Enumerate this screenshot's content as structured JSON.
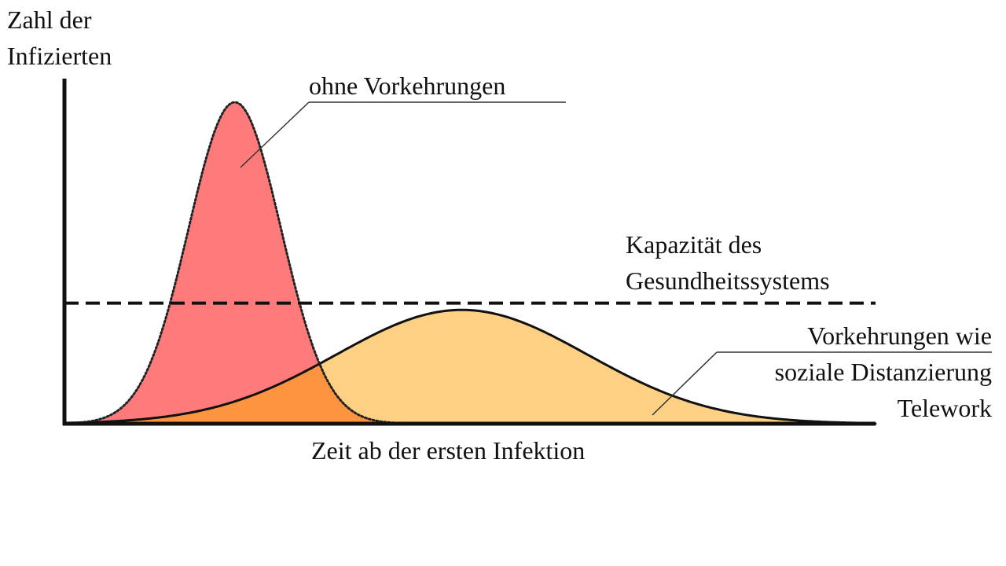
{
  "ylabel_lines": [
    "Zahl der",
    "Infizierten"
  ],
  "xlabel": "Zeit ab der ersten Infektion",
  "annotations": {
    "peak_lines": [
      "ohne Vorkehrungen"
    ],
    "capacity_lines": [
      "Kapazität des",
      "Gesundheitssystems"
    ],
    "flat_lines": [
      "Vorkehrungen wie",
      "soziale Distanzierung",
      "Telework"
    ]
  },
  "colors": {
    "peak_fill": "#ff7b7b",
    "flat_fill": "#fdd084",
    "overlap_fill": "#ff9440",
    "capacity_line": "#111111",
    "axes": "#111111"
  },
  "chart_data": {
    "type": "area",
    "xlim": [
      0,
      100
    ],
    "ylim": [
      0,
      100
    ],
    "grid": false,
    "series": [
      {
        "style": "dotted-outline",
        "peak_x": 21,
        "peak_y": 100,
        "width": 5.7
      },
      {
        "style": "solid-outline",
        "peak_x": 49,
        "peak_y": 35.4,
        "width": 15.5
      }
    ],
    "capacity_y": 37.5
  }
}
